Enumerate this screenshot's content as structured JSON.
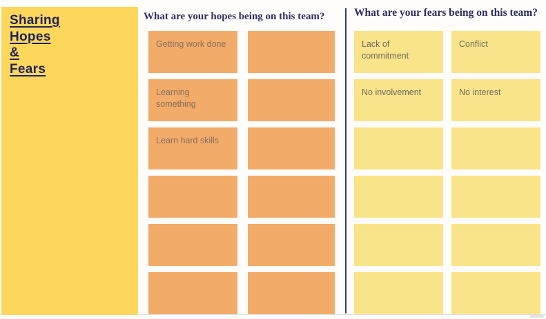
{
  "sidebar": {
    "title_lines": [
      "Sharing",
      "Hopes",
      "&",
      "Fears"
    ]
  },
  "hopes": {
    "heading": "What are your hopes being on this team?",
    "notes": [
      "Getting work done",
      "",
      "Learning something",
      "",
      "Learn hard skills",
      "",
      "",
      "",
      "",
      "",
      "",
      ""
    ]
  },
  "fears": {
    "heading": "What are your fears being on this team?",
    "notes": [
      "Lack of commitment",
      "Conflict",
      "No involvement",
      "No interest",
      "",
      "",
      "",
      "",
      "",
      "",
      "",
      ""
    ]
  },
  "colors": {
    "sidebar_bg": "#FCD75C",
    "hope_note_bg": "#F3AB69",
    "fear_note_bg": "#FAE489",
    "heading_text": "#2B2D5B",
    "sidebar_title_text": "#1E2157",
    "hope_note_text": "#836F5E",
    "fear_note_text": "#6F6A62",
    "divider": "#3A3D63"
  }
}
